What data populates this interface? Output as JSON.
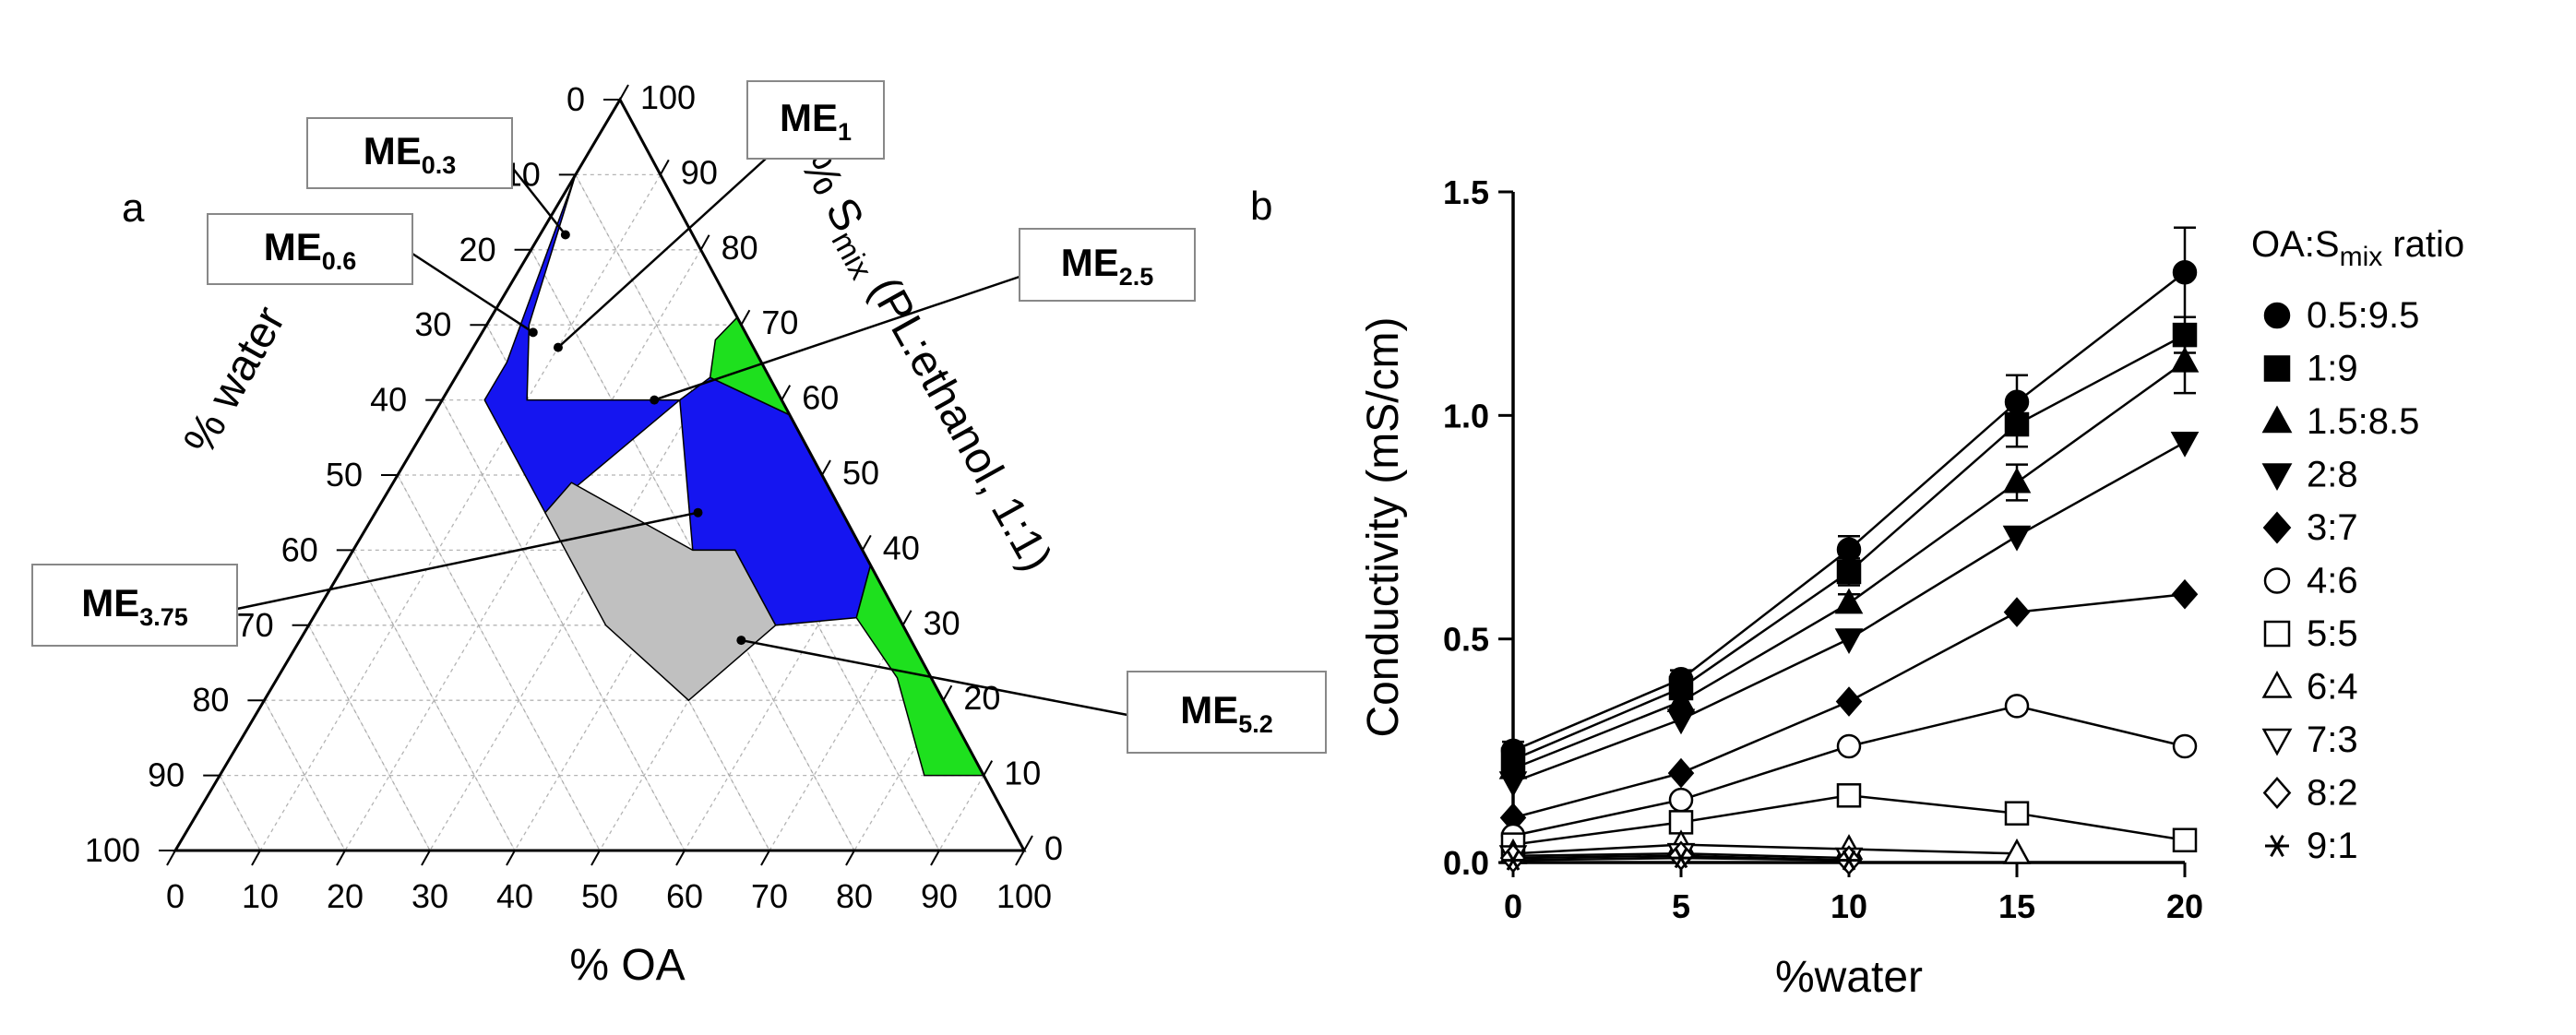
{
  "figure": {
    "panel_a_label": "a",
    "panel_b_label": "b"
  },
  "chart_data": [
    {
      "type": "ternary",
      "panel": "a",
      "axes": {
        "oa": {
          "label": "% OA",
          "ticks": [
            "0",
            "10",
            "20",
            "30",
            "40",
            "50",
            "60",
            "70",
            "80",
            "90",
            "100"
          ]
        },
        "water": {
          "label": "% water",
          "ticks": [
            "0",
            "10",
            "20",
            "30",
            "40",
            "50",
            "60",
            "70",
            "80",
            "90",
            "100"
          ]
        },
        "smix": {
          "label_prefix": "% S",
          "label_sub": "mix",
          "label_suffix": " (PL:ethanol, 1:1)",
          "ticks": [
            "0",
            "10",
            "20",
            "30",
            "40",
            "50",
            "60",
            "70",
            "80",
            "90",
            "100"
          ]
        }
      },
      "regions": [
        {
          "name": "blue-region",
          "color": "#1515f0",
          "vertices": [
            [
              0,
              10,
              90
            ],
            [
              5,
              25,
              70
            ],
            [
              10,
              30,
              60
            ],
            [
              28,
              12,
              60
            ],
            [
              30,
              7,
              63
            ],
            [
              42,
              0,
              58
            ],
            [
              56,
              0,
              44
            ],
            [
              62,
              0,
              38
            ],
            [
              64,
              5,
              31
            ],
            [
              55,
              15,
              30
            ],
            [
              45,
              15,
              40
            ],
            [
              40,
              20,
              40
            ],
            [
              28,
              12,
              60
            ],
            [
              20,
              35,
              45
            ],
            [
              5,
              35,
              60
            ],
            [
              5,
              30,
              65
            ]
          ]
        },
        {
          "name": "green-region",
          "color": "#1ee01e",
          "vertices": [
            [
              28,
              4,
              68
            ],
            [
              30,
              7,
              63
            ],
            [
              42,
              0,
              58
            ],
            [
              56,
              0,
              44
            ],
            [
              62,
              0,
              38
            ],
            [
              64,
              5,
              31
            ],
            [
              73,
              4,
              23
            ],
            [
              83,
              7,
              10
            ],
            [
              87,
              3,
              10
            ],
            [
              90,
              0,
              10
            ],
            [
              29,
              0,
              71
            ]
          ]
        },
        {
          "name": "gray-region",
          "color": "#c0c0c0",
          "vertices": [
            [
              20,
              35,
              45
            ],
            [
              21,
              30,
              49
            ],
            [
              40,
              20,
              40
            ],
            [
              45,
              15,
              40
            ],
            [
              55,
              15,
              30
            ],
            [
              50,
              30,
              20
            ],
            [
              35,
              35,
              30
            ]
          ]
        }
      ],
      "formulations": [
        {
          "name": "ME",
          "sub": "0.3",
          "oa": 3,
          "water": 15,
          "smix": 82
        },
        {
          "name": "ME",
          "sub": "0.6",
          "oa": 6,
          "water": 25,
          "smix": 69
        },
        {
          "name": "ME",
          "sub": "1",
          "oa": 10,
          "water": 23,
          "smix": 67
        },
        {
          "name": "ME",
          "sub": "2.5",
          "oa": 25,
          "water": 15,
          "smix": 60
        },
        {
          "name": "ME",
          "sub": "3.75",
          "oa": 38,
          "water": 17,
          "smix": 45
        },
        {
          "name": "ME",
          "sub": "5.2",
          "oa": 52,
          "water": 20,
          "smix": 28
        }
      ]
    },
    {
      "type": "line",
      "panel": "b",
      "title": "",
      "xlabel": "%water",
      "ylabel": "Conductivity (mS/cm)",
      "x": [
        0,
        5,
        10,
        15,
        20
      ],
      "xlim": [
        0,
        20
      ],
      "ylim": [
        0,
        1.5
      ],
      "xticks": [
        "0",
        "5",
        "10",
        "15",
        "20"
      ],
      "yticks": [
        "0.0",
        "0.5",
        "1.0",
        "1.5"
      ],
      "legend_title_prefix": "OA:S",
      "legend_title_sub": "mix",
      "legend_title_suffix": " ratio",
      "legend_position": "right",
      "series": [
        {
          "name": "0.5:9.5",
          "marker": "circle",
          "filled": true,
          "values": [
            0.25,
            0.41,
            0.7,
            1.03,
            1.32
          ],
          "errors": [
            0.02,
            0.02,
            0.03,
            0.06,
            0.1
          ]
        },
        {
          "name": "1:9",
          "marker": "square",
          "filled": true,
          "values": [
            0.23,
            0.39,
            0.65,
            0.98,
            1.18
          ],
          "errors": [
            0.02,
            0.02,
            0.03,
            0.05,
            0.04
          ]
        },
        {
          "name": "1.5:8.5",
          "marker": "triangle-up",
          "filled": true,
          "values": [
            0.21,
            0.36,
            0.58,
            0.85,
            1.12
          ],
          "errors": [
            0.02,
            0.02,
            0.02,
            0.04,
            0.07
          ]
        },
        {
          "name": "2:8",
          "marker": "triangle-down",
          "filled": true,
          "values": [
            0.18,
            0.32,
            0.5,
            0.73,
            0.94
          ],
          "errors": [
            0,
            0,
            0,
            0,
            0
          ]
        },
        {
          "name": "3:7",
          "marker": "diamond",
          "filled": true,
          "values": [
            0.1,
            0.2,
            0.36,
            0.56,
            0.6
          ],
          "errors": [
            0,
            0,
            0,
            0,
            0
          ]
        },
        {
          "name": "4:6",
          "marker": "circle",
          "filled": false,
          "values": [
            0.06,
            0.14,
            0.26,
            0.35,
            0.26
          ],
          "errors": [
            0,
            0,
            0,
            0,
            0
          ]
        },
        {
          "name": "5:5",
          "marker": "square",
          "filled": false,
          "values": [
            0.04,
            0.09,
            0.15,
            0.11,
            0.05
          ],
          "errors": [
            0,
            0,
            0,
            0,
            0
          ]
        },
        {
          "name": "6:4",
          "marker": "triangle-up",
          "filled": false,
          "values": [
            0.02,
            0.04,
            0.03,
            0.02,
            null
          ],
          "errors": [
            0,
            0,
            0,
            0,
            0
          ]
        },
        {
          "name": "7:3",
          "marker": "triangle-down",
          "filled": false,
          "values": [
            0.015,
            0.02,
            0.01,
            null,
            null
          ],
          "errors": [
            0,
            0,
            0,
            0,
            0
          ]
        },
        {
          "name": "8:2",
          "marker": "diamond",
          "filled": false,
          "values": [
            0.01,
            0.015,
            0.005,
            null,
            null
          ],
          "errors": [
            0,
            0,
            0,
            0,
            0
          ]
        },
        {
          "name": "9:1",
          "marker": "asterisk",
          "filled": false,
          "values": [
            0.005,
            0.01,
            0.005,
            null,
            null
          ],
          "errors": [
            0,
            0,
            0,
            0,
            0
          ]
        }
      ]
    }
  ]
}
